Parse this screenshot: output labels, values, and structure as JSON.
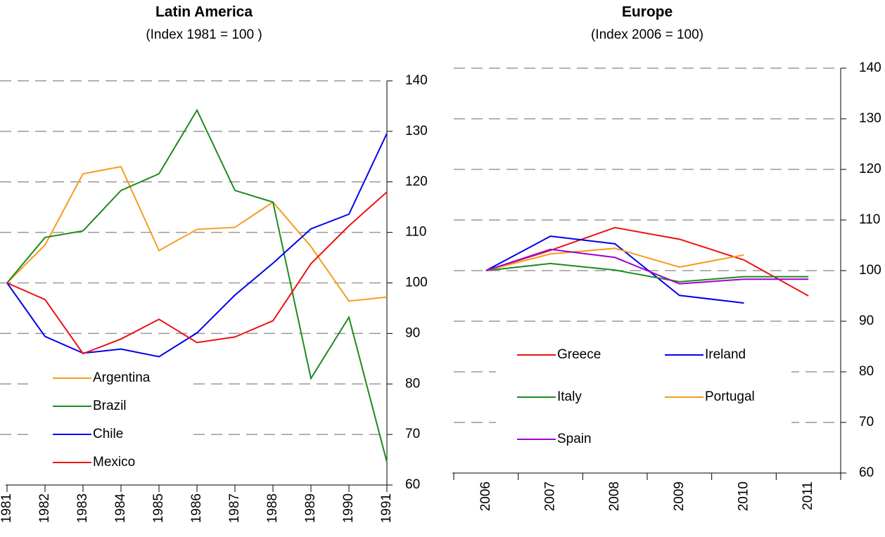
{
  "chart_data": [
    {
      "type": "line",
      "title": "Latin America",
      "subtitle": "(Index 1981 = 100 )",
      "categories": [
        "1981",
        "1982",
        "1983",
        "1984",
        "1985",
        "1986",
        "1987",
        "1988",
        "1989",
        "1990",
        "1991"
      ],
      "series": [
        {
          "name": "Argentina",
          "color": "#f79b1e",
          "values": [
            100,
            107.5,
            121.6,
            123,
            106.4,
            110.6,
            111,
            116,
            107.2,
            96.4,
            97.2
          ]
        },
        {
          "name": "Brazil",
          "color": "#1e8a1e",
          "values": [
            100,
            109,
            110.3,
            118.3,
            121.6,
            134.2,
            118.3,
            116,
            81.1,
            93.2,
            64.5
          ]
        },
        {
          "name": "Chile",
          "color": "#0000ee",
          "values": [
            100,
            89.4,
            86.1,
            86.9,
            85.4,
            90.1,
            97.6,
            103.9,
            110.7,
            113.6,
            129.6
          ]
        },
        {
          "name": "Mexico",
          "color": "#ee1111",
          "values": [
            100,
            96.7,
            86,
            88.9,
            92.8,
            88.2,
            89.3,
            92.5,
            103.8,
            111.3,
            118
          ]
        }
      ],
      "ylim": [
        60,
        140
      ],
      "yticks": [
        60,
        70,
        80,
        90,
        100,
        110,
        120,
        130,
        140
      ],
      "grid": true,
      "y_axis_side": "right",
      "legend": "lower left"
    },
    {
      "type": "line",
      "title": "Europe",
      "subtitle": "(Index 2006 = 100)",
      "categories": [
        "2006",
        "2007",
        "2008",
        "2009",
        "2010",
        "2011"
      ],
      "series": [
        {
          "name": "Greece",
          "color": "#ee1111",
          "values": [
            100,
            104,
            108.5,
            106.2,
            102.1,
            95
          ]
        },
        {
          "name": "Ireland",
          "color": "#0000ee",
          "values": [
            100,
            106.8,
            105.3,
            95.1,
            93.6,
            null
          ]
        },
        {
          "name": "Italy",
          "color": "#1e8a1e",
          "values": [
            100,
            101.4,
            100.1,
            97.8,
            98.8,
            98.8
          ]
        },
        {
          "name": "Portugal",
          "color": "#f79b1e",
          "values": [
            100,
            103.3,
            104.4,
            100.7,
            103.1,
            null
          ]
        },
        {
          "name": "Spain",
          "color": "#a000d0",
          "values": [
            100,
            104.2,
            102.6,
            97.4,
            98.3,
            98.3
          ]
        }
      ],
      "ylim": [
        60,
        140
      ],
      "yticks": [
        60,
        70,
        80,
        90,
        100,
        110,
        120,
        130,
        140
      ],
      "grid": true,
      "y_axis_side": "right",
      "legend": "lower center"
    }
  ]
}
